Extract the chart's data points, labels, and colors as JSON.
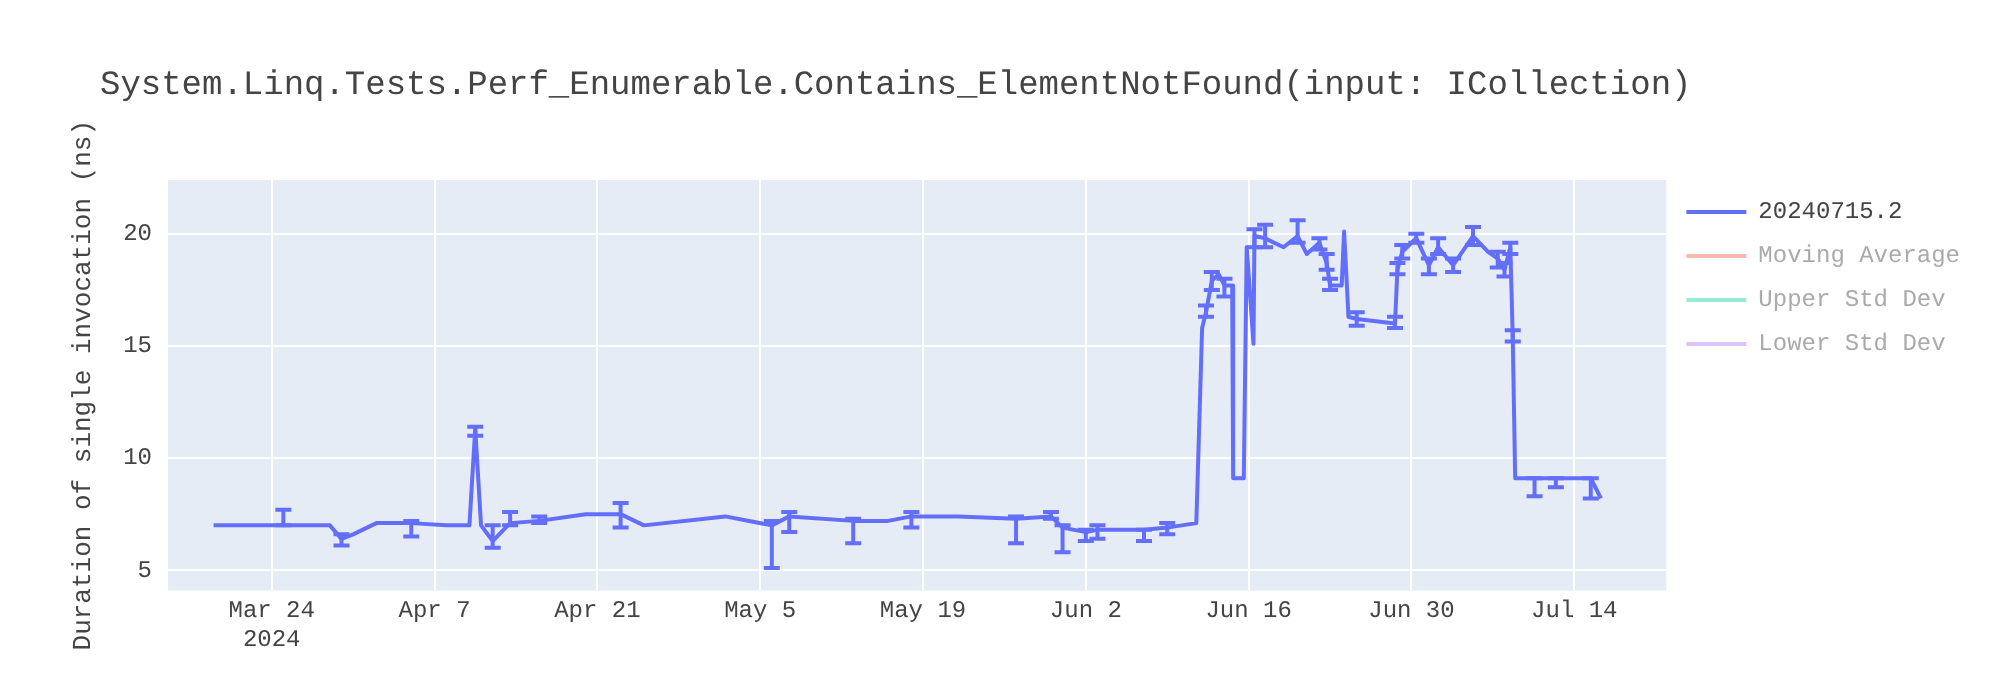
{
  "chart_data": {
    "type": "line",
    "title": "System.Linq.Tests.Perf_Enumerable.Contains_ElementNotFound(input: ICollection)",
    "ylabel": "Duration of single invocation (ns)",
    "xlim": [
      "2024-03-15T02:00",
      "2024-07-21T22:00"
    ],
    "xticks": [
      {
        "value": "2024-03-24",
        "label": "Mar 24\n2024"
      },
      {
        "value": "2024-04-07",
        "label": "Apr 7"
      },
      {
        "value": "2024-04-21",
        "label": "Apr 21"
      },
      {
        "value": "2024-05-05",
        "label": "May 5"
      },
      {
        "value": "2024-05-19",
        "label": "May 19"
      },
      {
        "value": "2024-06-02",
        "label": "Jun 2"
      },
      {
        "value": "2024-06-16",
        "label": "Jun 16"
      },
      {
        "value": "2024-06-30",
        "label": "Jun 30"
      },
      {
        "value": "2024-07-14",
        "label": "Jul 14"
      }
    ],
    "ylim": [
      4.1,
      22.4
    ],
    "yticks": [
      5,
      10,
      15,
      20
    ],
    "grid": true,
    "legend": "right",
    "line_style": "solid",
    "series": [
      {
        "name": "20240715.2",
        "color": "#636efa",
        "x": [
          "2024-03-19",
          "2024-03-25",
          "2024-03-29",
          "2024-03-30",
          "2024-03-31",
          "2024-04-02",
          "2024-04-05",
          "2024-04-08",
          "2024-04-10",
          "2024-04-10T12:00",
          "2024-04-11",
          "2024-04-12",
          "2024-04-13T12:00",
          "2024-04-16",
          "2024-04-20",
          "2024-04-23",
          "2024-04-25",
          "2024-05-02",
          "2024-05-06",
          "2024-05-07T12:00",
          "2024-05-13",
          "2024-05-16",
          "2024-05-18",
          "2024-05-22",
          "2024-05-27",
          "2024-05-30",
          "2024-05-31",
          "2024-06-02",
          "2024-06-03",
          "2024-06-05",
          "2024-06-07",
          "2024-06-09",
          "2024-06-11T12:00",
          "2024-06-12",
          "2024-06-12T08:00",
          "2024-06-12T20:00",
          "2024-06-13T10:00",
          "2024-06-13T22:00",
          "2024-06-14T14:00",
          "2024-06-14T16:00",
          "2024-06-15T14:00",
          "2024-06-15T20:00",
          "2024-06-16T10:00",
          "2024-06-16T12:00",
          "2024-06-17T10:00",
          "2024-06-19",
          "2024-06-20T05:00",
          "2024-06-21",
          "2024-06-22T02:00",
          "2024-06-22T17:00",
          "2024-06-23",
          "2024-06-24",
          "2024-06-24T05:00",
          "2024-06-24T14:00",
          "2024-06-25T07:00",
          "2024-06-28T14:00",
          "2024-06-28T19:00",
          "2024-06-29T05:00",
          "2024-06-30T10:00",
          "2024-07-01T12:00",
          "2024-07-02T07:00",
          "2024-07-03T14:00",
          "2024-07-05T07:00",
          "2024-07-06T14:00",
          "2024-07-07T10:00",
          "2024-07-08",
          "2024-07-08T12:00",
          "2024-07-08T17:00",
          "2024-07-08T22:00",
          "2024-07-10T14:00",
          "2024-07-12T10:00",
          "2024-07-15T10:00",
          "2024-07-16T07:00"
        ],
        "values": [
          7.0,
          7.0,
          7.0,
          6.4,
          6.6,
          7.1,
          7.1,
          7.0,
          7.0,
          11.3,
          7.0,
          6.3,
          7.1,
          7.2,
          7.5,
          7.5,
          7.0,
          7.4,
          7.0,
          7.4,
          7.2,
          7.2,
          7.4,
          7.4,
          7.3,
          7.4,
          6.9,
          6.7,
          6.8,
          6.8,
          6.8,
          6.9,
          7.1,
          15.8,
          16.5,
          17.9,
          18.2,
          17.7,
          17.7,
          9.1,
          9.1,
          19.4,
          15.1,
          19.9,
          19.8,
          19.4,
          19.9,
          19.1,
          19.6,
          18.7,
          17.7,
          17.7,
          20.1,
          16.3,
          16.2,
          16.0,
          18.4,
          19.2,
          19.8,
          18.6,
          19.4,
          18.6,
          19.9,
          19.2,
          18.9,
          18.4,
          19.4,
          15.4,
          9.1,
          9.1,
          9.1,
          9.1,
          8.2
        ],
        "errors": [
          null,
          [
            7.0,
            7.7
          ],
          null,
          [
            6.1,
            6.6
          ],
          null,
          null,
          [
            6.5,
            7.2
          ],
          null,
          null,
          [
            11.0,
            11.4
          ],
          null,
          [
            6.0,
            7.0
          ],
          [
            7.0,
            7.6
          ],
          [
            7.1,
            7.4
          ],
          null,
          [
            6.9,
            8.0
          ],
          null,
          null,
          [
            5.1,
            7.2
          ],
          [
            6.7,
            7.6
          ],
          [
            6.2,
            7.3
          ],
          null,
          [
            6.9,
            7.6
          ],
          null,
          [
            6.2,
            7.4
          ],
          [
            7.3,
            7.6
          ],
          [
            5.8,
            7.0
          ],
          [
            6.3,
            6.8
          ],
          [
            6.4,
            7.0
          ],
          null,
          [
            6.3,
            6.8
          ],
          [
            6.6,
            7.1
          ],
          null,
          null,
          [
            16.3,
            16.8
          ],
          [
            17.5,
            18.3
          ],
          null,
          [
            17.2,
            18.0
          ],
          null,
          null,
          null,
          null,
          null,
          [
            19.4,
            20.2
          ],
          [
            19.4,
            20.4
          ],
          null,
          [
            19.6,
            20.6
          ],
          null,
          [
            19.3,
            19.8
          ],
          [
            18.4,
            19.1
          ],
          [
            17.5,
            18.0
          ],
          null,
          null,
          null,
          [
            15.9,
            16.5
          ],
          [
            15.8,
            16.3
          ],
          [
            18.2,
            18.7
          ],
          [
            18.9,
            19.5
          ],
          [
            19.6,
            20.0
          ],
          [
            18.2,
            18.9
          ],
          [
            19.1,
            19.8
          ],
          [
            18.3,
            18.9
          ],
          [
            19.5,
            20.3
          ],
          null,
          [
            18.5,
            19.2
          ],
          [
            18.1,
            18.7
          ],
          [
            19.1,
            19.6
          ],
          [
            15.2,
            15.7
          ],
          null,
          [
            8.3,
            9.1
          ],
          [
            8.7,
            9.1
          ],
          [
            8.2,
            9.1
          ],
          null
        ]
      },
      {
        "name": "Moving Average",
        "color": "#ef553b"
      },
      {
        "name": "Upper Std Dev",
        "color": "#00cc96"
      },
      {
        "name": "Lower Std Dev",
        "color": "#ab63fa"
      }
    ]
  }
}
